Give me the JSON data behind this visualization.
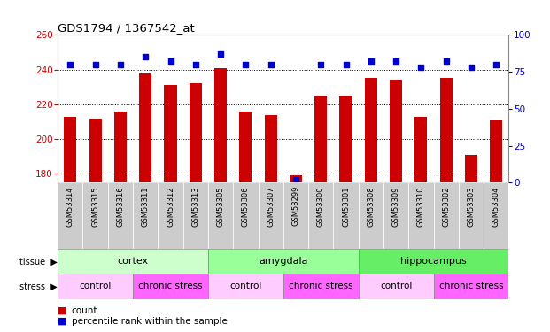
{
  "title": "GDS1794 / 1367542_at",
  "samples": [
    "GSM53314",
    "GSM53315",
    "GSM53316",
    "GSM53311",
    "GSM53312",
    "GSM53313",
    "GSM53305",
    "GSM53306",
    "GSM53307",
    "GSM53299",
    "GSM53300",
    "GSM53301",
    "GSM53308",
    "GSM53309",
    "GSM53310",
    "GSM53302",
    "GSM53303",
    "GSM53304"
  ],
  "counts": [
    213,
    212,
    216,
    238,
    231,
    232,
    241,
    216,
    214,
    179,
    225,
    225,
    235,
    234,
    213,
    235,
    191,
    211
  ],
  "percentiles": [
    80,
    80,
    80,
    85,
    82,
    80,
    87,
    80,
    80,
    2,
    80,
    80,
    82,
    82,
    78,
    82,
    78,
    80
  ],
  "ylim_left": [
    175,
    260
  ],
  "ylim_right": [
    0,
    100
  ],
  "yticks_left": [
    180,
    200,
    220,
    240,
    260
  ],
  "yticks_right": [
    0,
    25,
    50,
    75,
    100
  ],
  "bar_color": "#cc0000",
  "dot_color": "#0000cc",
  "tissue_groups": [
    {
      "label": "cortex",
      "start": 0,
      "end": 6,
      "color": "#ccffcc"
    },
    {
      "label": "amygdala",
      "start": 6,
      "end": 12,
      "color": "#99ff99"
    },
    {
      "label": "hippocampus",
      "start": 12,
      "end": 18,
      "color": "#66ee66"
    }
  ],
  "stress_groups": [
    {
      "label": "control",
      "start": 0,
      "end": 3,
      "color": "#ffccff"
    },
    {
      "label": "chronic stress",
      "start": 3,
      "end": 6,
      "color": "#ff66ff"
    },
    {
      "label": "control",
      "start": 6,
      "end": 9,
      "color": "#ffccff"
    },
    {
      "label": "chronic stress",
      "start": 9,
      "end": 12,
      "color": "#ff66ff"
    },
    {
      "label": "control",
      "start": 12,
      "end": 15,
      "color": "#ffccff"
    },
    {
      "label": "chronic stress",
      "start": 15,
      "end": 18,
      "color": "#ff66ff"
    }
  ],
  "grid_color": "#000000",
  "background_color": "#ffffff",
  "xticklabel_bg": "#cccccc",
  "tick_label_color_left": "#cc0000",
  "tick_label_color_right": "#0000cc",
  "legend_count_color": "#cc0000",
  "legend_pct_color": "#0000cc"
}
